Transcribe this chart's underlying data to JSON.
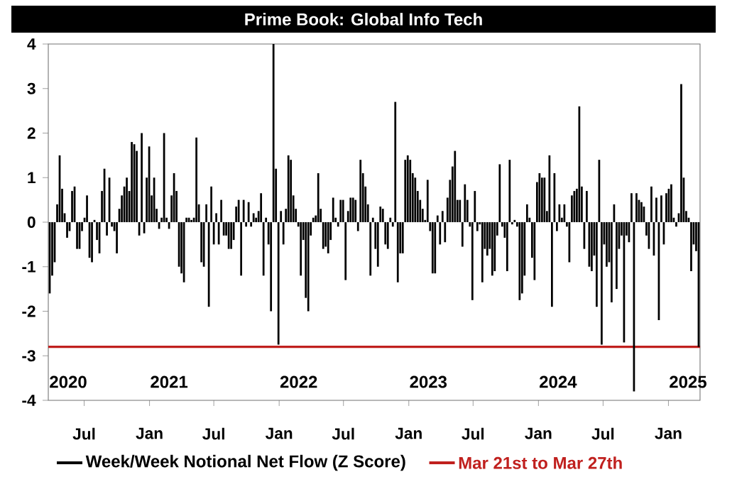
{
  "chart_data": {
    "type": "bar",
    "title": "Prime Book: Global Info Tech",
    "x": [
      "2020-03-26",
      "2020-04-02",
      "2020-04-09",
      "2020-04-16",
      "2020-04-23",
      "2020-04-30",
      "2020-05-07",
      "2020-05-14",
      "2020-05-21",
      "2020-05-28",
      "2020-06-04",
      "2020-06-11",
      "2020-06-18",
      "2020-06-25",
      "2020-07-02",
      "2020-07-09",
      "2020-07-16",
      "2020-07-23",
      "2020-07-30",
      "2020-08-06",
      "2020-08-13",
      "2020-08-20",
      "2020-08-27",
      "2020-09-03",
      "2020-09-10",
      "2020-09-17",
      "2020-09-24",
      "2020-10-01",
      "2020-10-08",
      "2020-10-15",
      "2020-10-22",
      "2020-10-29",
      "2020-11-05",
      "2020-11-12",
      "2020-11-19",
      "2020-11-26",
      "2020-12-03",
      "2020-12-10",
      "2020-12-17",
      "2020-12-24",
      "2020-12-31",
      "2021-01-07",
      "2021-01-14",
      "2021-01-21",
      "2021-01-28",
      "2021-02-04",
      "2021-02-11",
      "2021-02-18",
      "2021-02-25",
      "2021-03-04",
      "2021-03-11",
      "2021-03-18",
      "2021-03-25",
      "2021-04-01",
      "2021-04-08",
      "2021-04-15",
      "2021-04-22",
      "2021-04-29",
      "2021-05-06",
      "2021-05-13",
      "2021-05-20",
      "2021-05-27",
      "2021-06-03",
      "2021-06-10",
      "2021-06-17",
      "2021-06-24",
      "2021-07-01",
      "2021-07-08",
      "2021-07-15",
      "2021-07-22",
      "2021-07-29",
      "2021-08-05",
      "2021-08-12",
      "2021-08-19",
      "2021-08-26",
      "2021-09-02",
      "2021-09-09",
      "2021-09-16",
      "2021-09-23",
      "2021-09-30",
      "2021-10-07",
      "2021-10-14",
      "2021-10-21",
      "2021-10-28",
      "2021-11-04",
      "2021-11-11",
      "2021-11-18",
      "2021-11-25",
      "2021-12-02",
      "2021-12-09",
      "2021-12-16",
      "2021-12-23",
      "2021-12-30",
      "2022-01-06",
      "2022-01-13",
      "2022-01-20",
      "2022-01-27",
      "2022-02-03",
      "2022-02-10",
      "2022-02-17",
      "2022-02-24",
      "2022-03-03",
      "2022-03-10",
      "2022-03-17",
      "2022-03-24",
      "2022-03-31",
      "2022-04-07",
      "2022-04-14",
      "2022-04-21",
      "2022-04-28",
      "2022-05-05",
      "2022-05-12",
      "2022-05-19",
      "2022-05-26",
      "2022-06-02",
      "2022-06-09",
      "2022-06-16",
      "2022-06-23",
      "2022-06-30",
      "2022-07-07",
      "2022-07-14",
      "2022-07-21",
      "2022-07-28",
      "2022-08-04",
      "2022-08-11",
      "2022-08-18",
      "2022-08-25",
      "2022-09-01",
      "2022-09-08",
      "2022-09-15",
      "2022-09-22",
      "2022-09-29",
      "2022-10-06",
      "2022-10-13",
      "2022-10-20",
      "2022-10-27",
      "2022-11-03",
      "2022-11-10",
      "2022-11-17",
      "2022-11-24",
      "2022-12-01",
      "2022-12-08",
      "2022-12-15",
      "2022-12-22",
      "2022-12-29",
      "2023-01-05",
      "2023-01-12",
      "2023-01-19",
      "2023-01-26",
      "2023-02-02",
      "2023-02-09",
      "2023-02-16",
      "2023-02-23",
      "2023-03-02",
      "2023-03-09",
      "2023-03-16",
      "2023-03-23",
      "2023-03-30",
      "2023-04-06",
      "2023-04-13",
      "2023-04-20",
      "2023-04-27",
      "2023-05-04",
      "2023-05-11",
      "2023-05-18",
      "2023-05-25",
      "2023-06-01",
      "2023-06-08",
      "2023-06-15",
      "2023-06-22",
      "2023-06-29",
      "2023-07-06",
      "2023-07-13",
      "2023-07-20",
      "2023-07-27",
      "2023-08-03",
      "2023-08-10",
      "2023-08-17",
      "2023-08-24",
      "2023-08-31",
      "2023-09-07",
      "2023-09-14",
      "2023-09-21",
      "2023-09-28",
      "2023-10-05",
      "2023-10-12",
      "2023-10-19",
      "2023-10-26",
      "2023-11-02",
      "2023-11-09",
      "2023-11-16",
      "2023-11-23",
      "2023-11-30",
      "2023-12-07",
      "2023-12-14",
      "2023-12-21",
      "2023-12-28",
      "2024-01-04",
      "2024-01-11",
      "2024-01-18",
      "2024-01-25",
      "2024-02-01",
      "2024-02-08",
      "2024-02-15",
      "2024-02-22",
      "2024-02-29",
      "2024-03-07",
      "2024-03-14",
      "2024-03-21",
      "2024-03-28",
      "2024-04-04",
      "2024-04-11",
      "2024-04-18",
      "2024-04-25",
      "2024-05-02",
      "2024-05-09",
      "2024-05-16",
      "2024-05-23",
      "2024-05-30",
      "2024-06-06",
      "2024-06-13",
      "2024-06-20",
      "2024-06-27",
      "2024-07-04",
      "2024-07-11",
      "2024-07-18",
      "2024-07-25",
      "2024-08-01",
      "2024-08-08",
      "2024-08-15",
      "2024-08-22",
      "2024-08-29",
      "2024-09-05",
      "2024-09-12",
      "2024-09-19",
      "2024-09-26",
      "2024-10-03",
      "2024-10-10",
      "2024-10-17",
      "2024-10-24",
      "2024-10-31",
      "2024-11-07",
      "2024-11-14",
      "2024-11-21",
      "2024-11-28",
      "2024-12-05",
      "2024-12-12",
      "2024-12-19",
      "2024-12-26",
      "2025-01-02",
      "2025-01-09",
      "2025-01-16",
      "2025-01-23",
      "2025-01-30",
      "2025-02-06",
      "2025-02-13",
      "2025-02-20",
      "2025-02-27",
      "2025-03-06",
      "2025-03-13",
      "2025-03-20",
      "2025-03-27"
    ],
    "series": [
      {
        "name": "Week/Week Notional Net Flow (Z Score)",
        "color": "#000000",
        "values": [
          -1.6,
          -1.2,
          -0.9,
          0.4,
          1.5,
          0.75,
          0.2,
          -0.35,
          -0.2,
          0.7,
          0.8,
          -0.6,
          -0.6,
          -0.2,
          0.1,
          0.6,
          -0.8,
          -0.9,
          0.05,
          -0.4,
          -0.7,
          0.7,
          1.2,
          -0.3,
          1.0,
          -0.1,
          -0.2,
          -0.7,
          0.3,
          0.6,
          0.8,
          1.0,
          0.7,
          1.8,
          1.75,
          1.6,
          -0.3,
          2.0,
          -0.25,
          1.0,
          1.7,
          0.6,
          1.0,
          0.3,
          -0.15,
          0.1,
          2.0,
          0.1,
          -0.15,
          0.6,
          1.1,
          0.7,
          -1.0,
          -1.15,
          -1.35,
          0.1,
          0.1,
          0.05,
          0.1,
          1.9,
          0.4,
          -0.9,
          -1.0,
          0.4,
          -1.9,
          0.8,
          -0.5,
          0.2,
          -0.5,
          0.5,
          -0.3,
          -0.3,
          -0.6,
          -0.6,
          -0.4,
          0.35,
          0.5,
          -1.2,
          0.5,
          -0.1,
          0.45,
          -0.1,
          0.2,
          0.1,
          0.25,
          0.65,
          -1.2,
          0.1,
          -0.5,
          -2.0,
          4.0,
          1.2,
          -2.75,
          0.25,
          -0.5,
          0.3,
          1.5,
          1.4,
          0.6,
          0.3,
          -0.1,
          -1.2,
          -0.4,
          -1.7,
          -2.0,
          -0.3,
          0.1,
          0.15,
          1.1,
          0.3,
          -0.6,
          -0.55,
          -0.7,
          -0.4,
          0.55,
          0.1,
          -0.1,
          0.5,
          0.5,
          -1.3,
          0.25,
          0.55,
          0.55,
          0.5,
          -0.2,
          1.4,
          1.1,
          0.8,
          0.4,
          -1.2,
          0.1,
          -0.6,
          -1.0,
          0.35,
          0.3,
          -0.5,
          -0.6,
          0.1,
          -0.1,
          2.7,
          -1.35,
          -0.7,
          -0.7,
          1.4,
          1.5,
          1.4,
          1.1,
          1.0,
          0.7,
          0.5,
          0.3,
          0.05,
          0.95,
          -0.2,
          -1.15,
          -1.15,
          0.15,
          -0.5,
          0.25,
          -0.45,
          0.55,
          0.95,
          1.25,
          1.6,
          0.5,
          0.5,
          -0.55,
          0.85,
          0.5,
          -0.1,
          -1.75,
          0.7,
          -0.2,
          -0.05,
          -1.35,
          -0.6,
          -0.75,
          -0.6,
          -1.2,
          -1.1,
          -0.3,
          1.3,
          -0.1,
          -0.35,
          -1.1,
          1.4,
          -0.05,
          0.05,
          -0.1,
          -1.75,
          -1.6,
          -1.2,
          0.4,
          0.1,
          -0.8,
          -1.3,
          0.9,
          1.1,
          1.0,
          1.0,
          0.25,
          1.5,
          -1.9,
          1.1,
          -0.2,
          0.4,
          0.1,
          0.4,
          -0.1,
          -0.9,
          0.6,
          0.7,
          0.75,
          2.6,
          0.8,
          -0.6,
          0.7,
          -1.0,
          -1.1,
          -0.75,
          -1.9,
          1.4,
          -2.75,
          -0.5,
          -1.0,
          -0.9,
          -1.8,
          0.4,
          -1.5,
          -0.6,
          -0.3,
          -2.7,
          -0.3,
          -0.45,
          0.65,
          -3.8,
          0.65,
          0.5,
          0.45,
          0.35,
          -0.3,
          -0.6,
          0.8,
          -0.75,
          0.55,
          -2.2,
          0.6,
          -0.5,
          0.65,
          0.75,
          0.85,
          0.1,
          -0.1,
          0.2,
          3.1,
          1.0,
          0.25,
          0.1,
          -1.1,
          -0.5,
          -0.65,
          -2.8
        ]
      }
    ],
    "xlim": [
      "2020-03-22",
      "2025-03-31"
    ],
    "xticks": [
      {
        "value": "2020-07-01",
        "label": "Jul"
      },
      {
        "value": "2021-01-01",
        "label": "Jan"
      },
      {
        "value": "2021-07-01",
        "label": "Jul"
      },
      {
        "value": "2022-01-01",
        "label": "Jan"
      },
      {
        "value": "2022-07-01",
        "label": "Jul"
      },
      {
        "value": "2023-01-01",
        "label": "Jan"
      },
      {
        "value": "2023-07-01",
        "label": "Jul"
      },
      {
        "value": "2024-01-01",
        "label": "Jan"
      },
      {
        "value": "2024-07-01",
        "label": "Jul"
      },
      {
        "value": "2025-01-01",
        "label": "Jan"
      }
    ],
    "x2lim": [
      "2020-03-22",
      "2025-03-31"
    ],
    "x2ticks": [
      {
        "value": "2020-05-17",
        "label": "2020"
      },
      {
        "value": "2021-02-25",
        "label": "2021"
      },
      {
        "value": "2022-02-25",
        "label": "2022"
      },
      {
        "value": "2023-02-25",
        "label": "2023"
      },
      {
        "value": "2024-02-25",
        "label": "2024"
      },
      {
        "value": "2025-02-25",
        "label": "2025"
      }
    ],
    "ylim": [
      -4,
      4
    ],
    "yticks": [
      -4,
      -3,
      -2,
      -1,
      0,
      1,
      2,
      3,
      4
    ],
    "ref_lines": [
      {
        "axis": "y",
        "value": -2.8,
        "label": "Mar 21st to Mar 27th",
        "color": "#c0201e"
      }
    ],
    "legend": "bottom"
  }
}
